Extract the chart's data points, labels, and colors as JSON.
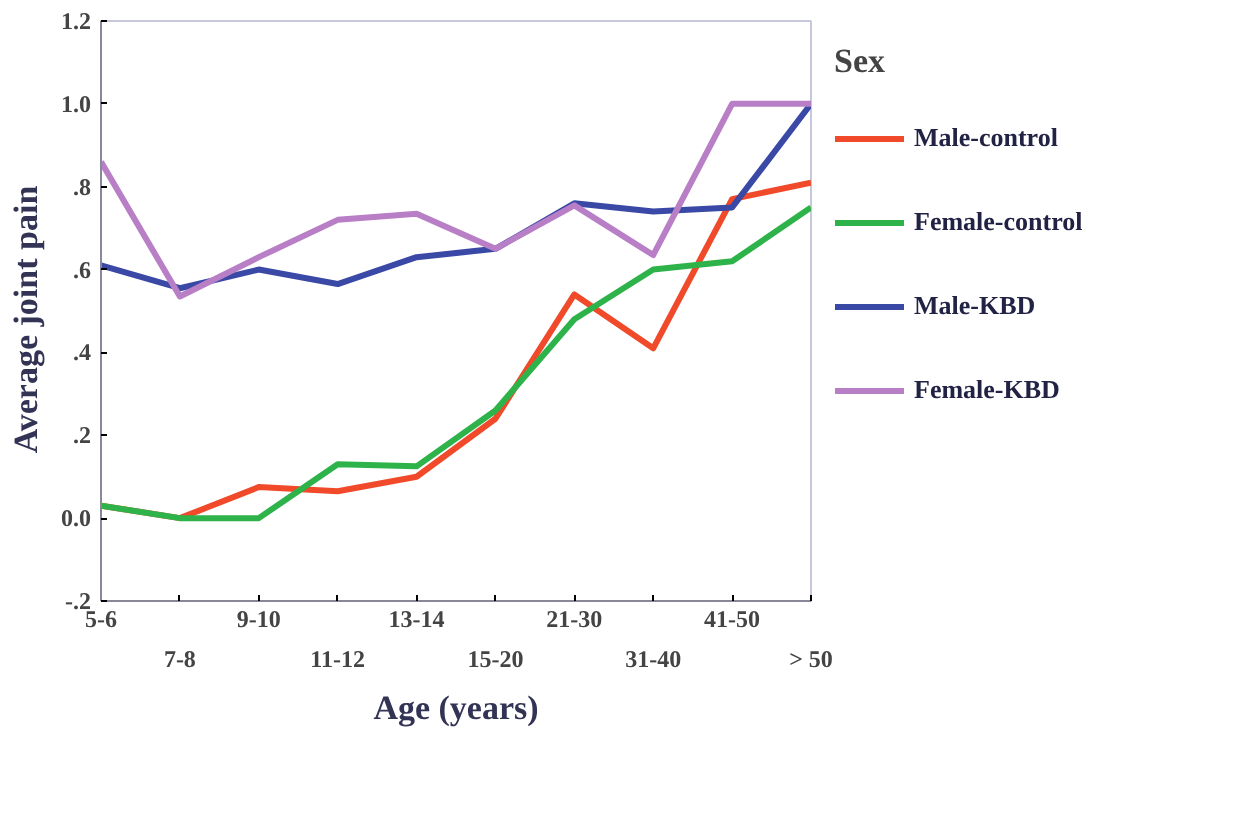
{
  "chart_data": {
    "type": "line",
    "xlabel": "Age (years)",
    "ylabel": "Average   joint pain",
    "legend_title": "Sex",
    "categories": [
      "5-6",
      "7-8",
      "9-10",
      "11-12",
      "13-14",
      "15-20",
      "21-30",
      "31-40",
      "41-50",
      "> 50"
    ],
    "ylim": [
      -0.2,
      1.2
    ],
    "yticks": [
      {
        "value": -0.2,
        "label": "-.2"
      },
      {
        "value": 0,
        "label": "0.0"
      },
      {
        "value": 0.2,
        "label": ".2"
      },
      {
        "value": 0.4,
        "label": ".4"
      },
      {
        "value": 0.6,
        "label": ".6"
      },
      {
        "value": 0.8,
        "label": ".8"
      },
      {
        "value": 1.0,
        "label": "1.0"
      },
      {
        "value": 1.2,
        "label": "1.2"
      }
    ],
    "grid": false,
    "legend": "right",
    "marker": "none",
    "line_style": "solid",
    "series": [
      {
        "name": "Male-control",
        "color": "#f04a2a",
        "values": [
          0.03,
          0.0,
          0.075,
          0.065,
          0.1,
          0.24,
          0.54,
          0.41,
          0.77,
          0.81
        ]
      },
      {
        "name": "Female-control",
        "color": "#2db34a",
        "values": [
          0.03,
          0.0,
          0.0,
          0.13,
          0.125,
          0.26,
          0.48,
          0.6,
          0.62,
          0.75
        ]
      },
      {
        "name": "Male-KBD",
        "color": "#3a48a6",
        "values": [
          0.61,
          0.555,
          0.6,
          0.565,
          0.63,
          0.65,
          0.76,
          0.74,
          0.75,
          1.0
        ]
      },
      {
        "name": "Female-KBD",
        "color": "#b87fc6",
        "values": [
          0.86,
          0.535,
          0.63,
          0.72,
          0.735,
          0.65,
          0.755,
          0.635,
          1.0,
          1.0
        ]
      }
    ]
  }
}
